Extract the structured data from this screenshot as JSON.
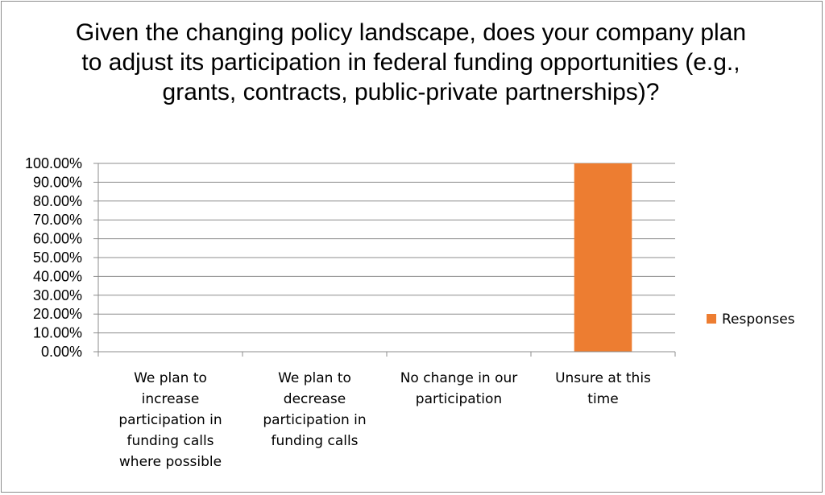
{
  "chart_data": {
    "type": "bar",
    "title": "Given the changing policy landscape, does your company plan to adjust its participation in federal funding opportunities (e.g., grants, contracts, public-private partnerships)?",
    "categories": [
      [
        "We plan to",
        "increase",
        "participation in",
        "funding calls",
        "where possible"
      ],
      [
        "We plan to",
        "decrease",
        "participation in",
        "funding calls"
      ],
      [
        "No change in our",
        "participation"
      ],
      [
        "Unsure at this",
        "time"
      ]
    ],
    "series": [
      {
        "name": "Responses",
        "values": [
          0,
          0,
          0,
          100
        ],
        "color": "#ed7d31"
      }
    ],
    "ylim": [
      0,
      100
    ],
    "yticks": [
      "0.00%",
      "10.00%",
      "20.00%",
      "30.00%",
      "40.00%",
      "50.00%",
      "60.00%",
      "70.00%",
      "80.00%",
      "90.00%",
      "100.00%"
    ],
    "grid": true,
    "legend_position": "right"
  }
}
